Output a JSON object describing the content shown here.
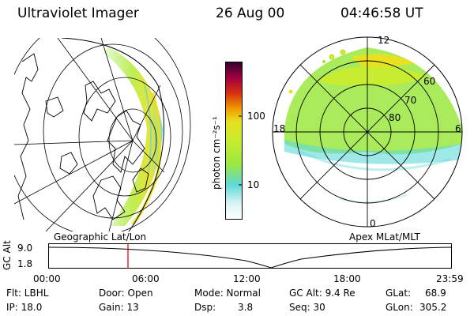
{
  "header": {
    "instrument": "Ultraviolet Imager",
    "date": "26 Aug 00",
    "time": "04:46:58 UT"
  },
  "geo_panel": {
    "label": "Geographic Lat/Lon"
  },
  "polar_panel": {
    "label": "Apex MLat/MLT",
    "mlt_labels": [
      "12",
      "18",
      "6",
      "0"
    ],
    "mlat_labels": [
      "60",
      "70",
      "80"
    ]
  },
  "colorbar": {
    "unit_label": "photon cm⁻²s⁻¹",
    "ticks": [
      "100",
      "10"
    ],
    "scale": "log",
    "colors": [
      "#ffffff",
      "#5fd8d8",
      "#9be840",
      "#e8e020",
      "#f0a000",
      "#d83010",
      "#a00040",
      "#300030"
    ]
  },
  "timeline": {
    "y_label": "GC Alt",
    "y_ticks": [
      "9.0",
      "1.8"
    ],
    "x_ticks": [
      "00:00",
      "06:00",
      "12:00",
      "18:00",
      "23:59"
    ],
    "current_time_color": "#cc0000"
  },
  "status": {
    "filter": "Flt: LBHL",
    "ip": "IP: 18.0",
    "door": "Door: Open",
    "gain": "Gain: 13",
    "mode": "Mode: Normal",
    "dsp_label": "Dsp:",
    "dsp_value": "3.8",
    "gc_alt": "GC Alt: 9.4 Re",
    "seq": "Seq: 30",
    "glat_label": "GLat:",
    "glat_value": "68.9",
    "glon_label": "GLon:",
    "glon_value": "305.2"
  }
}
